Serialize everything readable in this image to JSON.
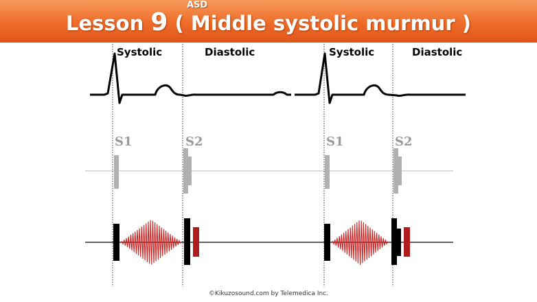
{
  "header": {
    "lesson": "Lesson",
    "number": "9",
    "topic": "( Middle systolic murmur )",
    "subtitle": "ASD"
  },
  "phase_labels": {
    "systolic": "Systolic",
    "diastolic": "Diastolic"
  },
  "sound_labels": {
    "s1": "S1",
    "s2": "S2"
  },
  "copyright": "©Kikuzosound.com by Telemedica Inc.",
  "colors": {
    "banner": "#ee6b28",
    "murmur": "#cc2222",
    "heart_sound": "#000000",
    "reference_sound": "#b0b0b0"
  }
}
